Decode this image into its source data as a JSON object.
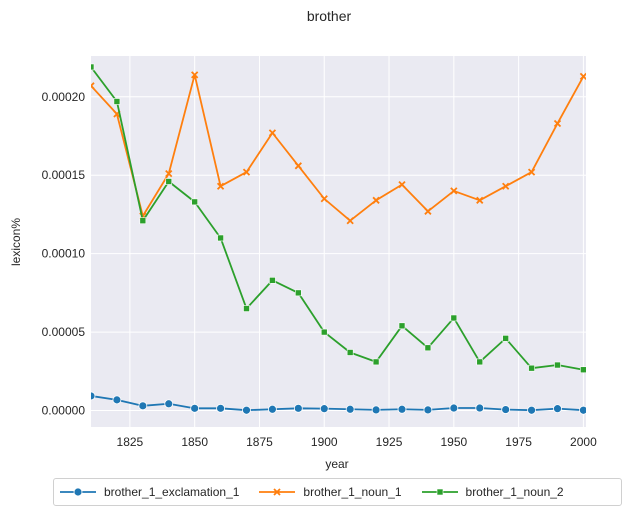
{
  "chart_data": {
    "type": "line",
    "title": "brother",
    "xlabel": "year",
    "ylabel": "lexicon%",
    "xlim": [
      1810,
      2001
    ],
    "ylim": [
      -1.05e-05,
      0.000226
    ],
    "x_ticks": [
      1825,
      1850,
      1875,
      1900,
      1925,
      1950,
      1975,
      2000
    ],
    "y_ticks": [
      0.0,
      5e-05,
      0.0001,
      0.00015,
      0.0002
    ],
    "y_tick_labels": [
      "0.00000",
      "0.00005",
      "0.00010",
      "0.00015",
      "0.00020"
    ],
    "grid": true,
    "background": "#eaeaf2",
    "legend_position": "bottom-center",
    "x": [
      1810,
      1820,
      1830,
      1840,
      1850,
      1860,
      1870,
      1880,
      1890,
      1900,
      1910,
      1920,
      1930,
      1940,
      1950,
      1960,
      1970,
      1980,
      1990,
      2000
    ],
    "series": [
      {
        "name": "brother_1_exclamation_1",
        "color": "#1f77b4",
        "marker": "circle",
        "values": [
          9.3e-06,
          6.8e-06,
          3e-06,
          4.3e-06,
          1.4e-06,
          1.4e-06,
          2e-07,
          8e-07,
          1.4e-06,
          1.2e-06,
          8e-07,
          4e-07,
          8e-07,
          4e-07,
          1.6e-06,
          1.6e-06,
          6e-07,
          2e-07,
          1.2e-06,
          2e-07
        ]
      },
      {
        "name": "brother_1_noun_1",
        "color": "#ff7f0e",
        "marker": "x",
        "values": [
          0.000207,
          0.000189,
          0.000124,
          0.000151,
          0.000214,
          0.000143,
          0.000152,
          0.000177,
          0.000156,
          0.000135,
          0.000121,
          0.000134,
          0.000144,
          0.000127,
          0.00014,
          0.000134,
          0.000143,
          0.000152,
          0.000183,
          0.000213
        ]
      },
      {
        "name": "brother_1_noun_2",
        "color": "#2ca02c",
        "marker": "square",
        "values": [
          0.000219,
          0.000197,
          0.000121,
          0.000146,
          0.000133,
          0.00011,
          6.5e-05,
          8.3e-05,
          7.5e-05,
          5e-05,
          3.7e-05,
          3.1e-05,
          5.4e-05,
          4e-05,
          5.9e-05,
          3.1e-05,
          4.6e-05,
          2.7e-05,
          2.9e-05,
          2.6e-05
        ]
      }
    ]
  }
}
